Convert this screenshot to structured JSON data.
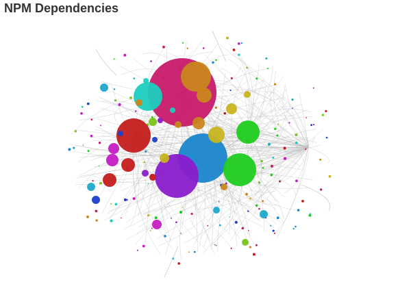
{
  "title": "NPM Dependencies",
  "colors": {
    "title": "#333333",
    "edge": "#bdbdbd",
    "palette": [
      "#c81a6a",
      "#c9861e",
      "#1bcdbf",
      "#c41c1c",
      "#1b85cc",
      "#8a1ccc",
      "#1fcc1f",
      "#c8b420",
      "#c41cc4",
      "#1b3fcc",
      "#1ea8cc",
      "#79c41c"
    ]
  },
  "graph": {
    "type": "force-directed network",
    "edges": "many thin curved dependency links (unlabeled)",
    "node_colors_used": [
      "crimson",
      "orange",
      "teal",
      "red",
      "blue",
      "purple",
      "green",
      "olive",
      "magenta",
      "navy",
      "cyan",
      "lime"
    ]
  }
}
